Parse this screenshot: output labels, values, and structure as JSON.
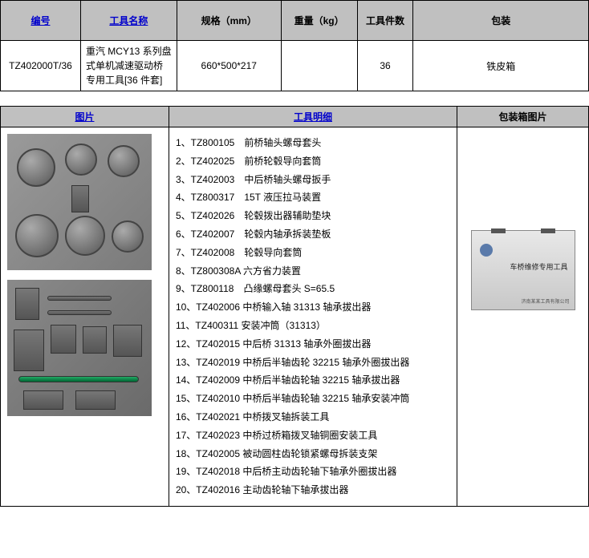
{
  "topHeaders": {
    "c1": "编号",
    "c2": "工具名称",
    "c3": "规格（mm）",
    "c4": "重量（kg）",
    "c5": "工具件数",
    "c6": "包装"
  },
  "topRow": {
    "id": "TZ402000T/36",
    "name": "重汽 MCY13 系列盘式单机减速驱动桥专用工具[36 件套]",
    "spec": "660*500*217",
    "weight": "",
    "count": "36",
    "pack": "铁皮箱"
  },
  "secHeaders": {
    "c1": "图片",
    "c2": "工具明细",
    "c3": "包装箱图片"
  },
  "details": [
    "1、TZ800105　前桥轴头螺母套头",
    "2、TZ402025　前桥轮毂导向套筒",
    "3、TZ402003　中后桥轴头螺母扳手",
    "4、TZ800317　15T 液压拉马装置",
    "5、TZ402026　轮毂拨出器辅助垫块",
    "6、TZ402007　轮毂内轴承拆装垫板",
    "7、TZ402008　轮毂导向套筒",
    "8、TZ800308A 六方省力装置",
    "9、TZ800118　凸缘螺母套头 S=65.5",
    "10、TZ402006 中桥输入轴 31313 轴承拔出器",
    "11、TZ400311 安装冲筒（31313）",
    "12、TZ402015 中后桥 31313 轴承外圈拔出器",
    "13、TZ402019 中桥后半轴齿轮 32215 轴承外圈拔出器",
    "14、TZ402009 中桥后半轴齿轮轴 32215 轴承拔出器",
    "15、TZ402010 中桥后半轴齿轮轴 32215 轴承安装冲筒",
    "16、TZ402021 中桥拨叉轴拆装工具",
    "17、TZ402023 中桥过桥箱拨叉轴铜圈安装工具",
    "18、TZ402005 被动圆柱齿轮锁紧螺母拆装支架",
    "19、TZ402018 中后桥主动齿轮轴下轴承外圈拔出器",
    "20、TZ402016 主动齿轮轴下轴承拔出器"
  ],
  "boxText": "车桥维修专用工具",
  "colWidths": {
    "c1": 100,
    "c2": 120,
    "c3": 130,
    "c4": 95,
    "c5": 70,
    "c6": 219
  },
  "secWidths": {
    "c1": 210,
    "c2": 360,
    "c3": 164
  }
}
